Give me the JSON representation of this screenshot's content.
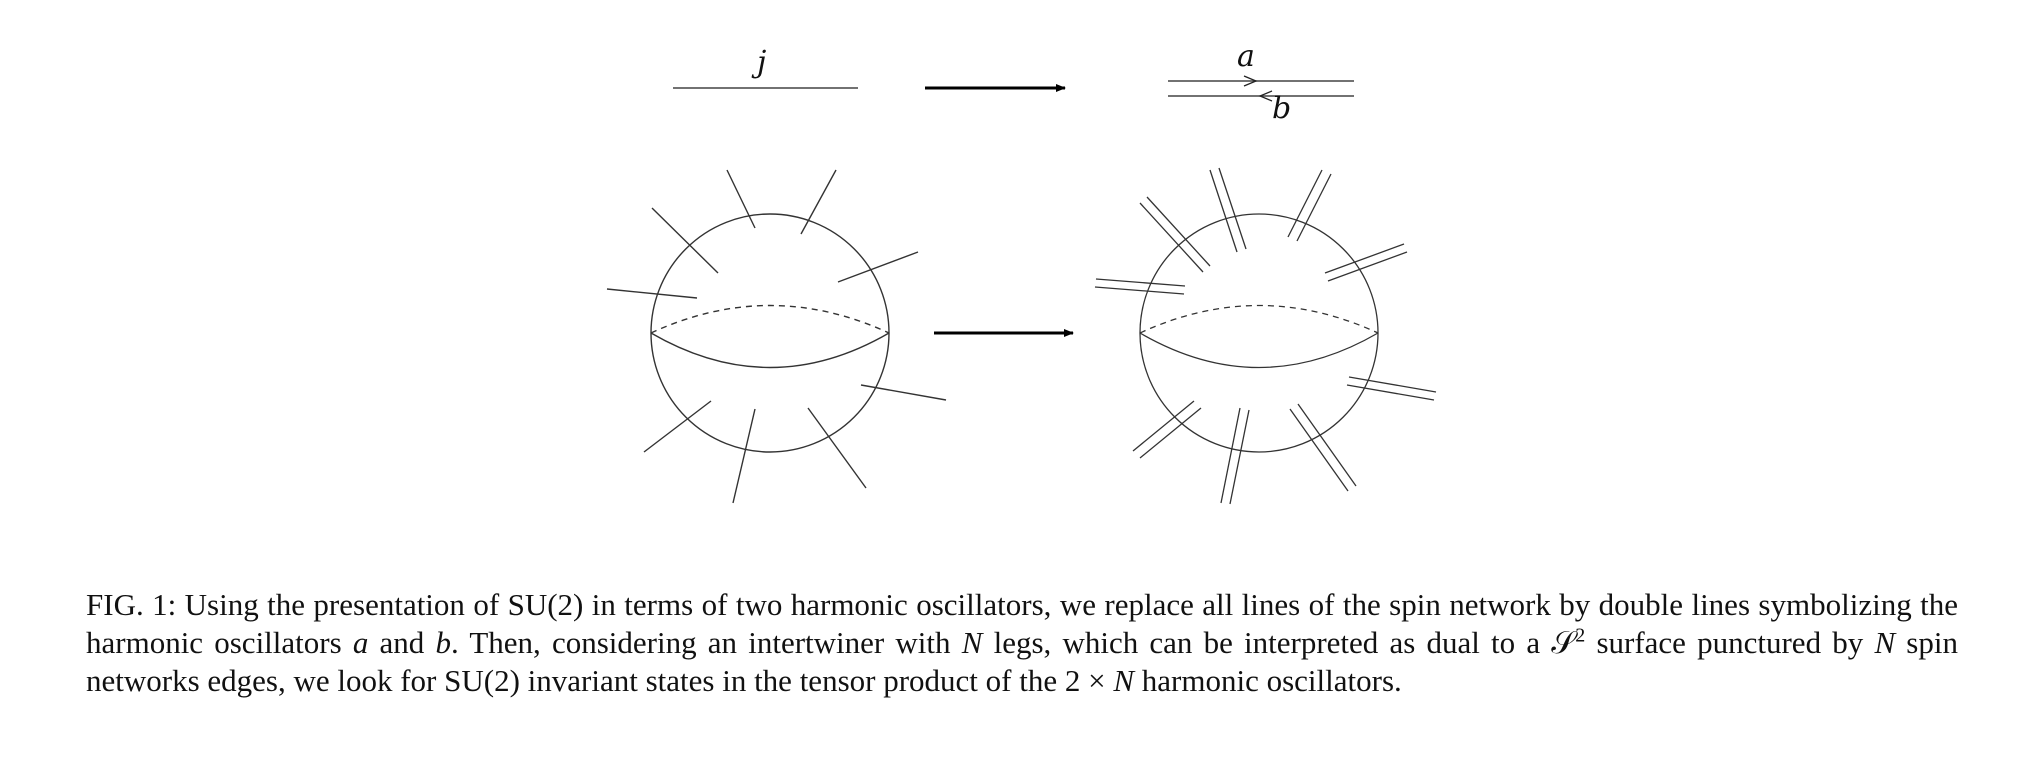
{
  "figure": {
    "labels": {
      "single_line": "j",
      "oscillator_a": "a",
      "oscillator_b": "b"
    }
  },
  "caption": {
    "fig_label": "FIG. 1:",
    "part1": " Using the presentation of SU(2) in terms of two harmonic oscillators, we replace all lines of the spin network by double lines symbolizing the harmonic oscillators ",
    "var_a": "a",
    "part2": " and ",
    "var_b": "b",
    "part3": ". Then, considering an intertwiner with ",
    "var_n1": "N",
    "part4": " legs, which can be interpreted as dual to a ",
    "surface_symbol": "𝒮",
    "surface_power": "2",
    "part5": " surface punctured by ",
    "var_n2": "N",
    "part6": " spin networks edges, we look for SU(2) invariant states in the tensor product of the 2 × ",
    "var_n3": "N",
    "part7": " harmonic oscillators."
  }
}
